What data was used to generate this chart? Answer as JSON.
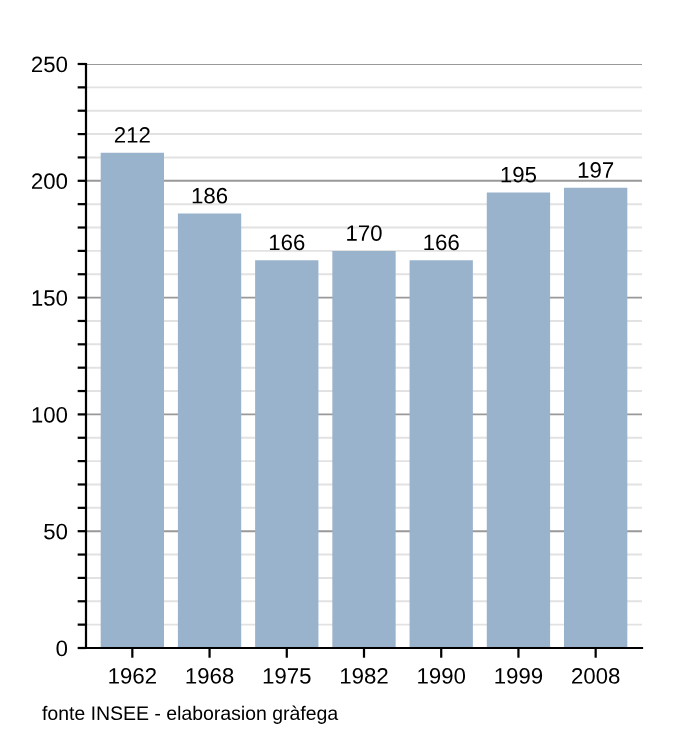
{
  "chart_data": {
    "type": "bar",
    "categories": [
      "1962",
      "1968",
      "1975",
      "1982",
      "1990",
      "1999",
      "2008"
    ],
    "values": [
      212,
      186,
      166,
      170,
      166,
      195,
      197
    ],
    "color": "#9ab3cc",
    "data_labels": true,
    "grid": "y",
    "ylim": [
      0,
      250
    ],
    "yticks": [
      0,
      {
        "value": 10,
        "label": null
      },
      {
        "value": 20,
        "label": null
      },
      {
        "value": 30,
        "label": null
      },
      {
        "value": 40,
        "label": null
      },
      50,
      {
        "value": 60,
        "label": null
      },
      {
        "value": 70,
        "label": null
      },
      {
        "value": 80,
        "label": null
      },
      {
        "value": 90,
        "label": null
      },
      100,
      {
        "value": 110,
        "label": null
      },
      {
        "value": 120,
        "label": null
      },
      {
        "value": 130,
        "label": null
      },
      {
        "value": 140,
        "label": null
      },
      150,
      {
        "value": 160,
        "label": null
      },
      {
        "value": 170,
        "label": null
      },
      {
        "value": 180,
        "label": null
      },
      {
        "value": 190,
        "label": null
      },
      200,
      {
        "value": 210,
        "label": null
      },
      {
        "value": 220,
        "label": null
      },
      {
        "value": 230,
        "label": null
      },
      {
        "value": 240,
        "label": null
      },
      250
    ],
    "annotations": [
      "fonte INSEE - elaborasion gràfega"
    ]
  }
}
